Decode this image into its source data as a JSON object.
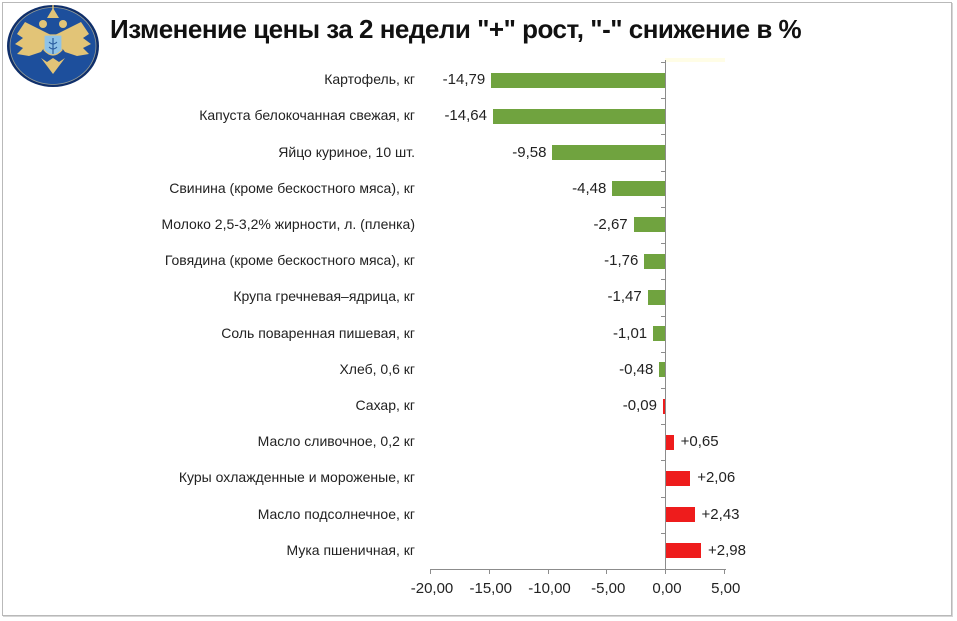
{
  "title": "Изменение цены за 2 недели \"+\" рост, \"-\" снижение в %",
  "logo": {
    "icon": "double-headed-eagle-emblem",
    "colors": {
      "circle": "#1d4f9c",
      "ring": "#0f2f6b",
      "eagle": "#e2c477"
    }
  },
  "colors": {
    "decrease": "#70a33f",
    "increase": "#ee1c1c",
    "axis": "#8c8c8c"
  },
  "chart_data": {
    "type": "bar",
    "orientation": "horizontal",
    "title": "Изменение цены за 2 недели \"+\" рост, \"-\" снижение в %",
    "xlabel": "",
    "ylabel": "",
    "xlim": [
      -20,
      5
    ],
    "x_ticks": [
      "-20,00",
      "-15,00",
      "-10,00",
      "-5,00",
      "0,00",
      "5,00"
    ],
    "grid": false,
    "legend": null,
    "categories": [
      "Картофель, кг",
      "Капуста белокочанная свежая, кг",
      "Яйцо куриное, 10 шт.",
      "Свинина (кроме бескостного мяса), кг",
      "Молоко 2,5-3,2% жирности, л. (пленка)",
      "Говядина (кроме бескостного мяса), кг",
      "Крупа гречневая–ядрица, кг",
      "Соль поваренная пишевая, кг",
      "Хлеб, 0,6 кг",
      "Сахар, кг",
      "Масло сливочное, 0,2 кг",
      "Куры охлажденные и мороженые, кг",
      "Масло подсолнечное, кг",
      "Мука пшеничная, кг"
    ],
    "values": [
      -14.79,
      -14.64,
      -9.58,
      -4.48,
      -2.67,
      -1.76,
      -1.47,
      -1.01,
      -0.48,
      -0.09,
      0.65,
      2.06,
      2.43,
      2.98
    ],
    "value_labels": [
      "-14,79",
      "-14,64",
      "-9,58",
      "-4,48",
      "-2,67",
      "-1,76",
      "-1,47",
      "-1,01",
      "-0,48",
      "-0,09",
      "+0,65",
      "+2,06",
      "+2,43",
      "+2,98"
    ],
    "bar_colors": [
      "#70a33f",
      "#70a33f",
      "#70a33f",
      "#70a33f",
      "#70a33f",
      "#70a33f",
      "#70a33f",
      "#70a33f",
      "#70a33f",
      "#ee1c1c",
      "#ee1c1c",
      "#ee1c1c",
      "#ee1c1c",
      "#ee1c1c"
    ]
  }
}
